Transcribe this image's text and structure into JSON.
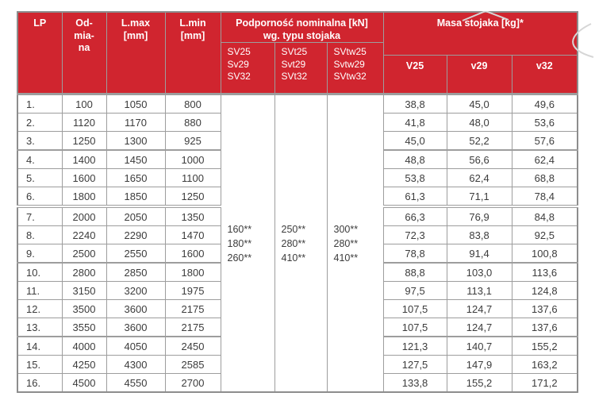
{
  "colors": {
    "header_red": "#d0252f",
    "border_gray": "#9d9d9d",
    "body_text": "#3c3c3c",
    "sketch_gray": "#d6d6d6"
  },
  "table": {
    "header": {
      "lp": "LP",
      "odmiana": "Od-\nmia-\nna",
      "lmax": "L.max\n[mm]",
      "lmin": "L.min\n[mm]",
      "podpornosc": "Podporność nominalna [kN]\nwg. typu stojaka",
      "sv": "SV25\nSv29\nSV32",
      "svt": "SVt25\nSvt29\nSVt32",
      "svtw": "SVtw25\nSvtw29\nSVtw32",
      "masa": "Masa stojaka  [kg]*",
      "v25": "V25",
      "v29": "v29",
      "v32": "v32"
    },
    "nominal_load": {
      "sv": "160**\n180**\n260**",
      "svt": "250**\n280**\n410**",
      "svtw": "300**\n280**\n410**"
    },
    "group_breaks_after": [
      3,
      6,
      9,
      13
    ],
    "rows": [
      {
        "lp": "1.",
        "odmiana": "100",
        "lmax": "1050",
        "lmin": "800",
        "v25": "38,8",
        "v29": "45,0",
        "v32": "49,6"
      },
      {
        "lp": "2.",
        "odmiana": "1120",
        "lmax": "1170",
        "lmin": "880",
        "v25": "41,8",
        "v29": "48,0",
        "v32": "53,6"
      },
      {
        "lp": "3.",
        "odmiana": "1250",
        "lmax": "1300",
        "lmin": "925",
        "v25": "45,0",
        "v29": "52,2",
        "v32": "57,6"
      },
      {
        "lp": "4.",
        "odmiana": "1400",
        "lmax": "1450",
        "lmin": "1000",
        "v25": "48,8",
        "v29": "56,6",
        "v32": "62,4"
      },
      {
        "lp": "5.",
        "odmiana": "1600",
        "lmax": "1650",
        "lmin": "1100",
        "v25": "53,8",
        "v29": "62,4",
        "v32": "68,8"
      },
      {
        "lp": "6.",
        "odmiana": "1800",
        "lmax": "1850",
        "lmin": "1250",
        "v25": "61,3",
        "v29": "71,1",
        "v32": "78,4"
      },
      {
        "lp": "7.",
        "odmiana": "2000",
        "lmax": "2050",
        "lmin": "1350",
        "v25": "66,3",
        "v29": "76,9",
        "v32": "84,8"
      },
      {
        "lp": "8.",
        "odmiana": "2240",
        "lmax": "2290",
        "lmin": "1470",
        "v25": "72,3",
        "v29": "83,8",
        "v32": "92,5"
      },
      {
        "lp": "9.",
        "odmiana": "2500",
        "lmax": "2550",
        "lmin": "1600",
        "v25": "78,8",
        "v29": "91,4",
        "v32": "100,8"
      },
      {
        "lp": "10.",
        "odmiana": "2800",
        "lmax": "2850",
        "lmin": "1800",
        "v25": "88,8",
        "v29": "103,0",
        "v32": "113,6"
      },
      {
        "lp": "11.",
        "odmiana": "3150",
        "lmax": "3200",
        "lmin": "1975",
        "v25": "97,5",
        "v29": "113,1",
        "v32": "124,8"
      },
      {
        "lp": "12.",
        "odmiana": "3500",
        "lmax": "3600",
        "lmin": "2175",
        "v25": "107,5",
        "v29": "124,7",
        "v32": "137,6"
      },
      {
        "lp": "13.",
        "odmiana": "3550",
        "lmax": "3600",
        "lmin": "2175",
        "v25": "107,5",
        "v29": "124,7",
        "v32": "137,6"
      },
      {
        "lp": "14.",
        "odmiana": "4000",
        "lmax": "4050",
        "lmin": "2450",
        "v25": "121,3",
        "v29": "140,7",
        "v32": "155,2"
      },
      {
        "lp": "15.",
        "odmiana": "4250",
        "lmax": "4300",
        "lmin": "2585",
        "v25": "127,5",
        "v29": "147,9",
        "v32": "163,2"
      },
      {
        "lp": "16.",
        "odmiana": "4500",
        "lmax": "4550",
        "lmin": "2700",
        "v25": "133,8",
        "v29": "155,2",
        "v32": "171,2"
      }
    ]
  }
}
